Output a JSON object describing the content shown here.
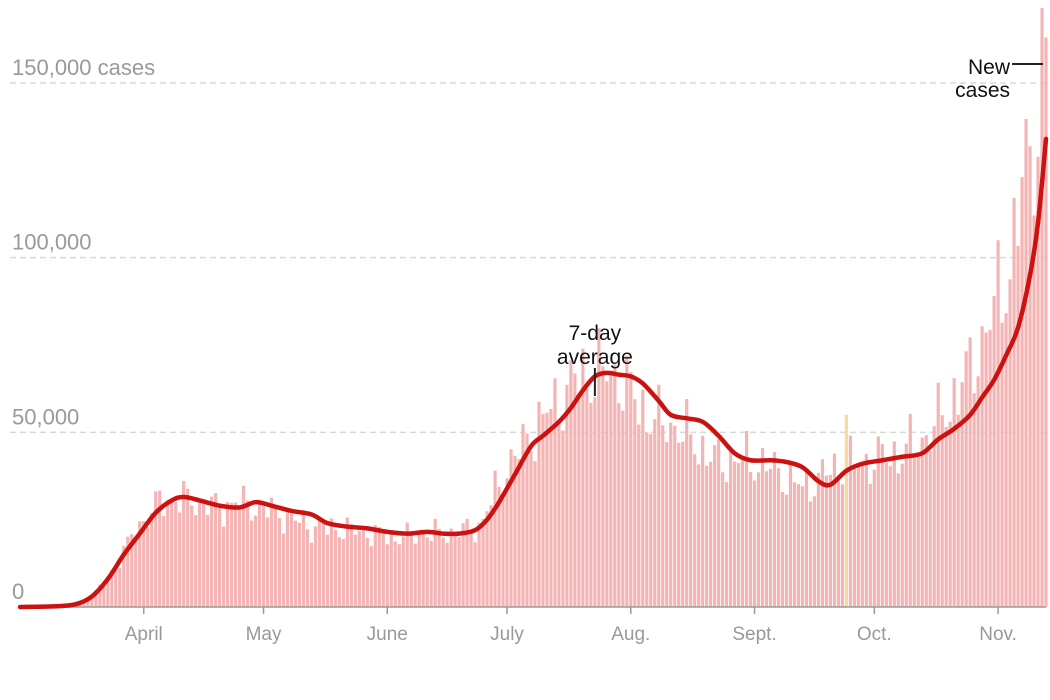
{
  "chart_data": {
    "type": "bar",
    "x_range": [
      "2020-03-01",
      "2020-11-13"
    ],
    "ylim": [
      0,
      160000
    ],
    "y_ticks": [
      {
        "value": 0,
        "label": "0"
      },
      {
        "value": 50000,
        "label": "50,000"
      },
      {
        "value": 100000,
        "label": "100,000"
      },
      {
        "value": 150000,
        "label": "150,000 cases"
      }
    ],
    "x_ticks": [
      {
        "date": "2020-04-01",
        "label": "April"
      },
      {
        "date": "2020-05-01",
        "label": "May"
      },
      {
        "date": "2020-06-01",
        "label": "June"
      },
      {
        "date": "2020-07-01",
        "label": "July"
      },
      {
        "date": "2020-08-01",
        "label": "Aug."
      },
      {
        "date": "2020-09-01",
        "label": "Sept."
      },
      {
        "date": "2020-10-01",
        "label": "Oct."
      },
      {
        "date": "2020-11-01",
        "label": "Nov."
      }
    ],
    "grid": true,
    "colors": {
      "bars": "#f4b4b4",
      "average_line": "#cc1111",
      "highlight_bar": "#f7d9a0"
    },
    "highlight_date": "2020-09-24",
    "series": [
      {
        "name": "New cases",
        "kind": "bar",
        "points": [
          [
            "2020-03-01",
            0
          ],
          [
            "2020-03-08",
            200
          ],
          [
            "2020-03-15",
            1000
          ],
          [
            "2020-03-19",
            3000
          ],
          [
            "2020-03-22",
            7000
          ],
          [
            "2020-03-25",
            12000
          ],
          [
            "2020-03-28",
            18000
          ],
          [
            "2020-04-01",
            25000
          ],
          [
            "2020-04-05",
            30000
          ],
          [
            "2020-04-10",
            31000
          ],
          [
            "2020-04-15",
            30000
          ],
          [
            "2020-04-20",
            28500
          ],
          [
            "2020-04-24",
            30000
          ],
          [
            "2020-04-28",
            29000
          ],
          [
            "2020-05-05",
            27000
          ],
          [
            "2020-05-12",
            23000
          ],
          [
            "2020-05-20",
            22500
          ],
          [
            "2020-05-28",
            21000
          ],
          [
            "2020-06-03",
            20000
          ],
          [
            "2020-06-10",
            21000
          ],
          [
            "2020-06-17",
            21000
          ],
          [
            "2020-06-24",
            23000
          ],
          [
            "2020-06-27",
            30000
          ],
          [
            "2020-07-01",
            40000
          ],
          [
            "2020-07-05",
            46000
          ],
          [
            "2020-07-10",
            54000
          ],
          [
            "2020-07-14",
            59000
          ],
          [
            "2020-07-18",
            65000
          ],
          [
            "2020-07-24",
            67000
          ],
          [
            "2020-07-29",
            66000
          ],
          [
            "2020-08-03",
            58000
          ],
          [
            "2020-08-07",
            53000
          ],
          [
            "2020-08-12",
            52000
          ],
          [
            "2020-08-17",
            47000
          ],
          [
            "2020-08-22",
            42000
          ],
          [
            "2020-08-29",
            42000
          ],
          [
            "2020-09-03",
            41000
          ],
          [
            "2020-09-08",
            38000
          ],
          [
            "2020-09-13",
            34000
          ],
          [
            "2020-09-17",
            37000
          ],
          [
            "2020-09-22",
            40000
          ],
          [
            "2020-09-30",
            42000
          ],
          [
            "2020-10-08",
            44000
          ],
          [
            "2020-10-15",
            50000
          ],
          [
            "2020-10-20",
            58000
          ],
          [
            "2020-10-25",
            68000
          ],
          [
            "2020-10-30",
            82000
          ],
          [
            "2020-11-04",
            98000
          ],
          [
            "2020-11-08",
            125000
          ],
          [
            "2020-11-11",
            140000
          ],
          [
            "2020-11-13",
            163000
          ]
        ]
      },
      {
        "name": "7-day average",
        "kind": "line",
        "points": [
          [
            "2020-03-01",
            0
          ],
          [
            "2020-03-10",
            200
          ],
          [
            "2020-03-15",
            800
          ],
          [
            "2020-03-19",
            3000
          ],
          [
            "2020-03-23",
            8000
          ],
          [
            "2020-03-27",
            15000
          ],
          [
            "2020-03-31",
            21000
          ],
          [
            "2020-04-04",
            27000
          ],
          [
            "2020-04-08",
            30500
          ],
          [
            "2020-04-11",
            31500
          ],
          [
            "2020-04-15",
            30500
          ],
          [
            "2020-04-20",
            29000
          ],
          [
            "2020-04-25",
            28500
          ],
          [
            "2020-04-29",
            30000
          ],
          [
            "2020-05-03",
            29000
          ],
          [
            "2020-05-08",
            27500
          ],
          [
            "2020-05-13",
            26500
          ],
          [
            "2020-05-17",
            24000
          ],
          [
            "2020-05-22",
            23000
          ],
          [
            "2020-05-27",
            22500
          ],
          [
            "2020-06-01",
            21500
          ],
          [
            "2020-06-06",
            21000
          ],
          [
            "2020-06-11",
            21500
          ],
          [
            "2020-06-15",
            21000
          ],
          [
            "2020-06-19",
            21000
          ],
          [
            "2020-06-23",
            22000
          ],
          [
            "2020-06-26",
            25000
          ],
          [
            "2020-06-29",
            30000
          ],
          [
            "2020-07-03",
            38000
          ],
          [
            "2020-07-07",
            46000
          ],
          [
            "2020-07-10",
            49000
          ],
          [
            "2020-07-14",
            53000
          ],
          [
            "2020-07-17",
            57000
          ],
          [
            "2020-07-20",
            62000
          ],
          [
            "2020-07-23",
            66000
          ],
          [
            "2020-07-26",
            67000
          ],
          [
            "2020-07-29",
            66500
          ],
          [
            "2020-08-01",
            66000
          ],
          [
            "2020-08-04",
            64000
          ],
          [
            "2020-08-08",
            59000
          ],
          [
            "2020-08-11",
            55000
          ],
          [
            "2020-08-15",
            54000
          ],
          [
            "2020-08-19",
            53000
          ],
          [
            "2020-08-23",
            49000
          ],
          [
            "2020-08-27",
            44000
          ],
          [
            "2020-08-31",
            42000
          ],
          [
            "2020-09-05",
            42000
          ],
          [
            "2020-09-09",
            41500
          ],
          [
            "2020-09-13",
            40000
          ],
          [
            "2020-09-17",
            36000
          ],
          [
            "2020-09-20",
            35000
          ],
          [
            "2020-09-24",
            39000
          ],
          [
            "2020-09-28",
            41000
          ],
          [
            "2020-10-03",
            42000
          ],
          [
            "2020-10-08",
            43000
          ],
          [
            "2020-10-13",
            44000
          ],
          [
            "2020-10-17",
            48000
          ],
          [
            "2020-10-21",
            51000
          ],
          [
            "2020-10-25",
            55000
          ],
          [
            "2020-10-28",
            60000
          ],
          [
            "2020-10-31",
            65000
          ],
          [
            "2020-11-03",
            72000
          ],
          [
            "2020-11-06",
            80000
          ],
          [
            "2020-11-09",
            95000
          ],
          [
            "2020-11-11",
            110000
          ],
          [
            "2020-11-13",
            134000
          ]
        ]
      }
    ],
    "annotations": [
      {
        "lines": [
          "7-day",
          "average"
        ],
        "target_date": "2020-07-23",
        "target_value": 64000,
        "side": "above"
      },
      {
        "lines": [
          "New",
          "cases"
        ],
        "target_date": "2020-11-13",
        "target_value": 160000,
        "side": "left"
      }
    ]
  }
}
